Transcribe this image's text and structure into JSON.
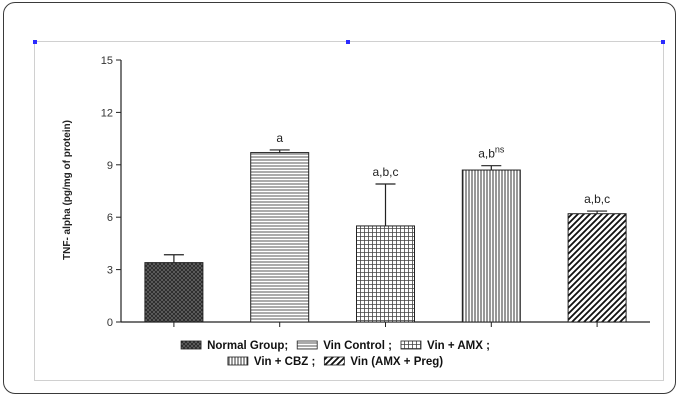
{
  "chart_data": {
    "type": "bar",
    "title": "",
    "xlabel": "",
    "ylabel": "TNF- alpha (pg/mg of protein)",
    "ylim": [
      0,
      15
    ],
    "yticks": [
      "0",
      "3",
      "6",
      "9",
      "12",
      "15"
    ],
    "categories": [
      "Normal Group",
      "Vin Control",
      "Vin + AMX",
      "Vin + CBZ",
      "Vin (AMX + Preg)"
    ],
    "values": [
      3.4,
      9.7,
      5.5,
      8.7,
      6.2
    ],
    "errors": [
      0.45,
      0.15,
      2.4,
      0.25,
      0.15
    ],
    "significance": [
      {
        "base": "",
        "sup": ""
      },
      {
        "base": "a",
        "sup": ""
      },
      {
        "base": "a,b,c",
        "sup": ""
      },
      {
        "base": "a,b",
        "sup": "ns"
      },
      {
        "base": "a,b,c",
        "sup": ""
      }
    ],
    "legend_rows": [
      [
        "Normal Group;",
        "Vin Control ;",
        "Vin + AMX ;"
      ],
      [
        "Vin + CBZ ;",
        "Vin (AMX + Preg)"
      ]
    ],
    "patterns": [
      "crosshatch",
      "horizontal",
      "grid",
      "vertical",
      "diagonal"
    ],
    "bar_fill_color": "#333333",
    "grid": false,
    "legend_position": "bottom"
  }
}
